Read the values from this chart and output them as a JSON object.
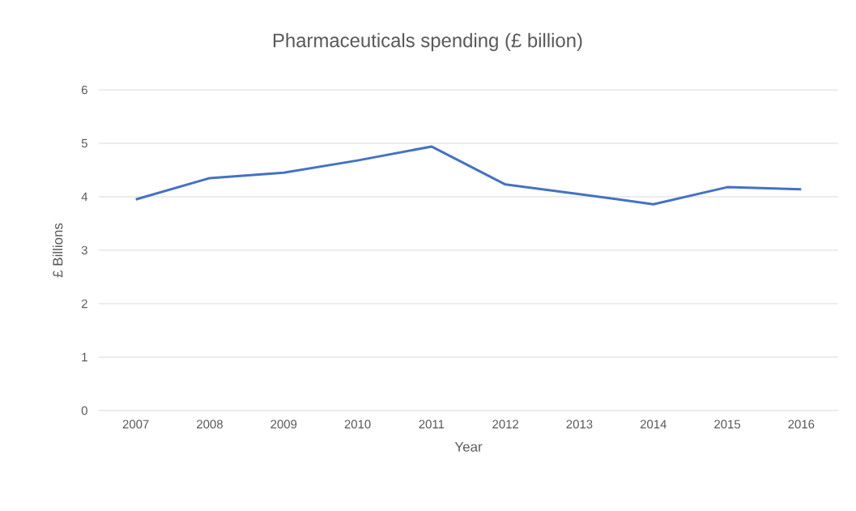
{
  "chart_data": {
    "type": "line",
    "title": "Pharmaceuticals spending  (£ billion)",
    "xlabel": "Year",
    "ylabel": "£ Billions",
    "categories": [
      "2007",
      "2008",
      "2009",
      "2010",
      "2011",
      "2012",
      "2013",
      "2014",
      "2015",
      "2016"
    ],
    "series": [
      {
        "color": "#4472c4",
        "values": [
          3.95,
          4.35,
          4.45,
          4.68,
          4.94,
          4.23,
          4.05,
          3.86,
          4.18,
          4.14
        ]
      }
    ],
    "ylim": [
      0,
      6
    ],
    "yticks": [
      0,
      1,
      2,
      3,
      4,
      5,
      6
    ],
    "grid": "y",
    "marker": "none"
  }
}
